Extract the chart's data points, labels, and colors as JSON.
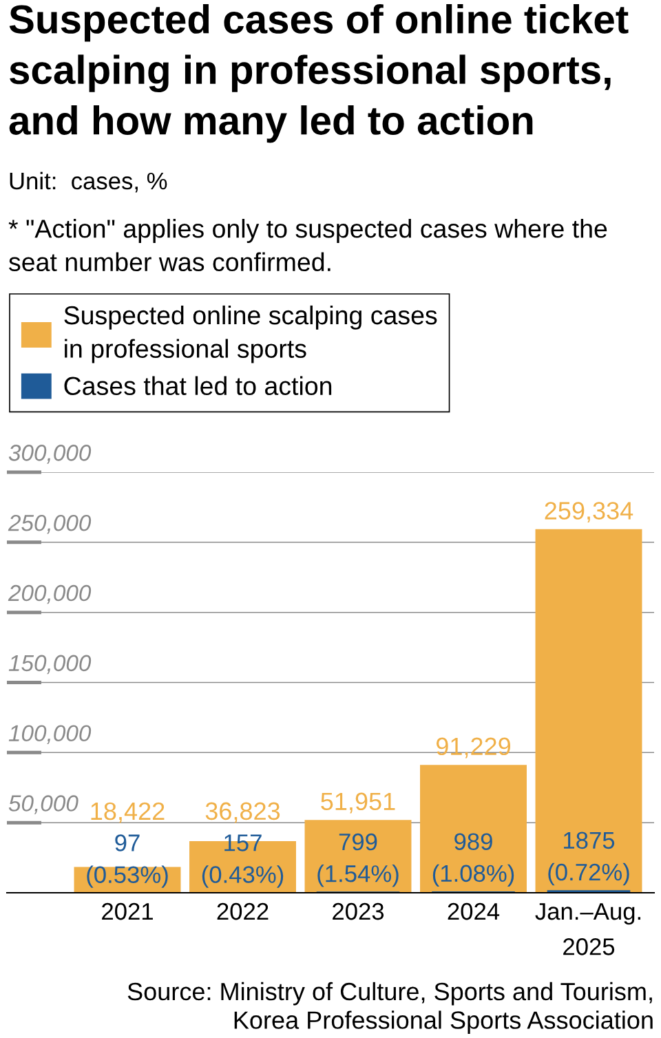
{
  "chart_data": {
    "type": "bar",
    "title": "Suspected cases of online ticket\nscalping in professional sports,\nand how many led to action",
    "subtitle": "Unit:  cases, %",
    "annotations": [
      "* \"Action\" applies only to suspected cases where the\nseat number was confirmed.",
      "Source: Ministry of Culture, Sports and Tourism,\nKorea Professional Sports Association"
    ],
    "categories": [
      "2021",
      "2022",
      "2023",
      "2024",
      "Jan.–Aug.\n2025"
    ],
    "series": [
      {
        "name": "Suspected online scalping cases\nin professional sports",
        "color": "#f0b048",
        "values": [
          18422,
          36823,
          51951,
          91229,
          259334
        ],
        "value_labels": [
          "18,422",
          "36,823",
          "51,951",
          "91,229",
          "259,334"
        ]
      },
      {
        "name": "Cases that led to action",
        "color": "#1f5b98",
        "values": [
          97,
          157,
          799,
          989,
          1875
        ],
        "value_labels": [
          "97\n(0.53%)",
          "157\n(0.43%)",
          "799\n(1.54%)",
          "989\n(1.08%)",
          "1875\n(0.72%)"
        ]
      }
    ],
    "ylim": [
      0,
      300000
    ],
    "yticks": [
      {
        "value": 50000,
        "label": "50,000"
      },
      {
        "value": 100000,
        "label": "100,000"
      },
      {
        "value": 150000,
        "label": "150,000"
      },
      {
        "value": 200000,
        "label": "200,000"
      },
      {
        "value": 250000,
        "label": "250,000"
      },
      {
        "value": 300000,
        "label": "300,000"
      }
    ],
    "grid": "y",
    "legend": "top left"
  }
}
